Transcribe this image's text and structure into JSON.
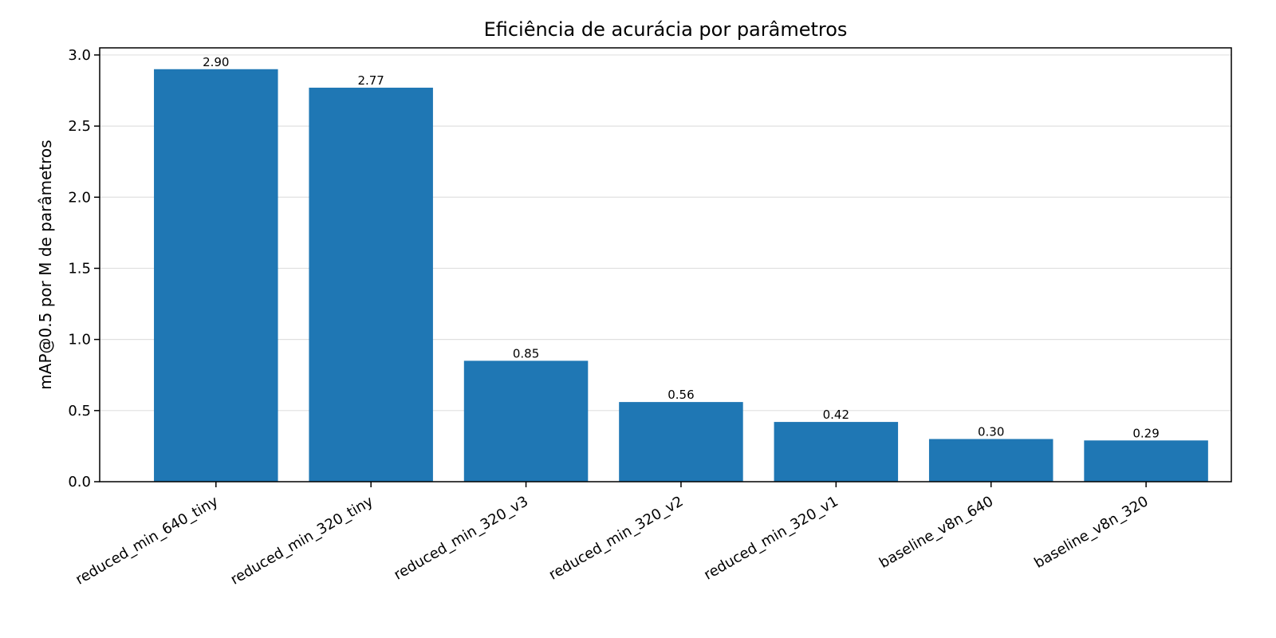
{
  "chart_data": {
    "type": "bar",
    "title": "Eficiência de acurácia por parâmetros",
    "xlabel": "",
    "ylabel": "mAP@0.5 por M de parâmetros",
    "categories": [
      "reduced_min_640_tiny",
      "reduced_min_320_tiny",
      "reduced_min_320_v3",
      "reduced_min_320_v2",
      "reduced_min_320_v1",
      "baseline_v8n_640",
      "baseline_v8n_320"
    ],
    "values": [
      2.9,
      2.77,
      0.85,
      0.56,
      0.42,
      0.3,
      0.29
    ],
    "data_labels": [
      "2.90",
      "2.77",
      "0.85",
      "0.56",
      "0.42",
      "0.30",
      "0.29"
    ],
    "yticks": [
      0.0,
      0.5,
      1.0,
      1.5,
      2.0,
      2.5,
      3.0
    ],
    "ytick_labels": [
      "0.0",
      "0.5",
      "1.0",
      "1.5",
      "2.0",
      "2.5",
      "3.0"
    ],
    "ylim": [
      0,
      3.05
    ],
    "grid": "horizontal",
    "legend": "none",
    "bar_color": "#1f77b4",
    "grid_color": "#e0e0e0"
  }
}
